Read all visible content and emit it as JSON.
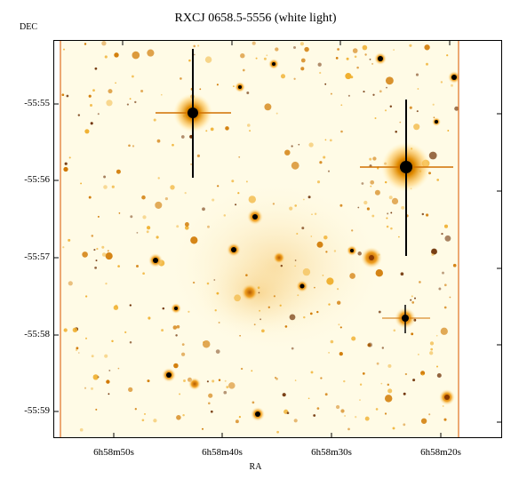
{
  "title": "RXCJ 0658.5-5556 (white light)",
  "axes": {
    "y_label": "DEC",
    "x_label": "RA",
    "y_ticks": [
      "-55:55",
      "-55:56",
      "-55:57",
      "-55:58",
      "-55:59"
    ],
    "x_ticks": [
      "6h58m50s",
      "6h58m40s",
      "6h58m30s",
      "6h58m20s"
    ]
  },
  "colors": {
    "background": "#fffbe0",
    "frame_edge": "#e07020",
    "star_core": "#000000",
    "star_glow": "#e8a000"
  }
}
